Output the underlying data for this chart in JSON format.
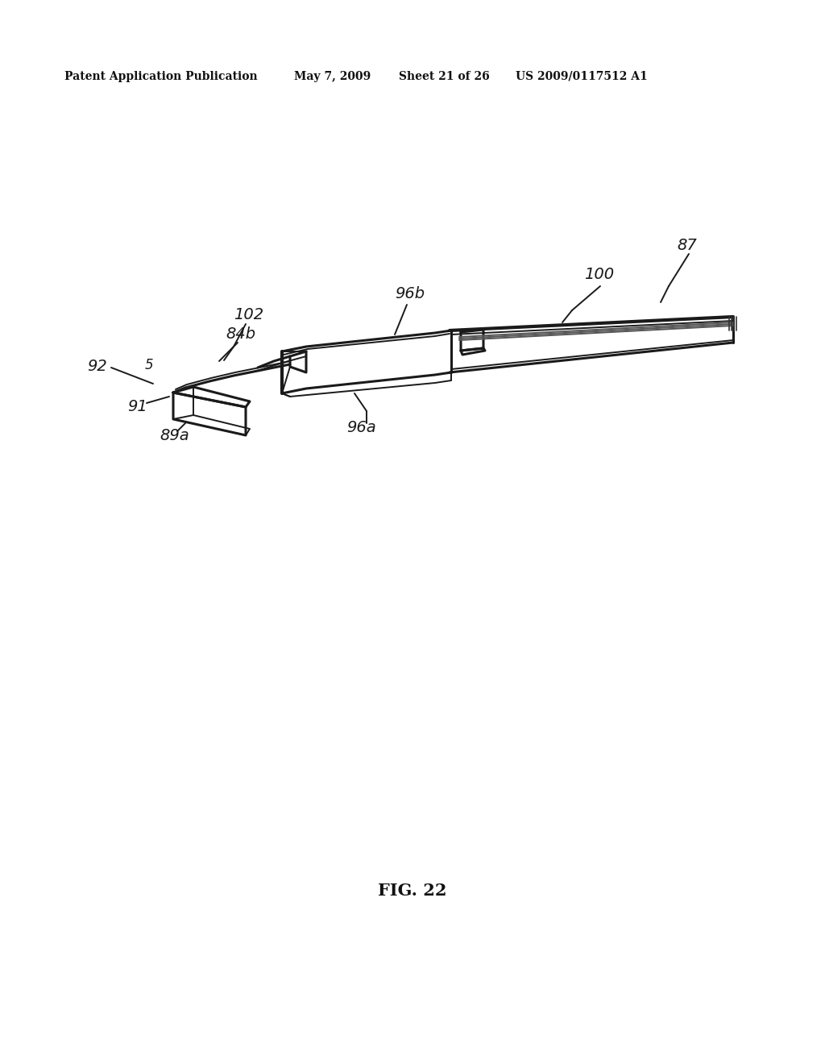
{
  "background_color": "#ffffff",
  "header_text": "Patent Application Publication",
  "header_date": "May 7, 2009",
  "header_sheet": "Sheet 21 of 26",
  "header_patent": "US 2009/0117512 A1",
  "figure_label": "FIG. 22",
  "line_color": "#1a1a1a",
  "label_fontsize": 13,
  "fig_label_fontsize": 15
}
